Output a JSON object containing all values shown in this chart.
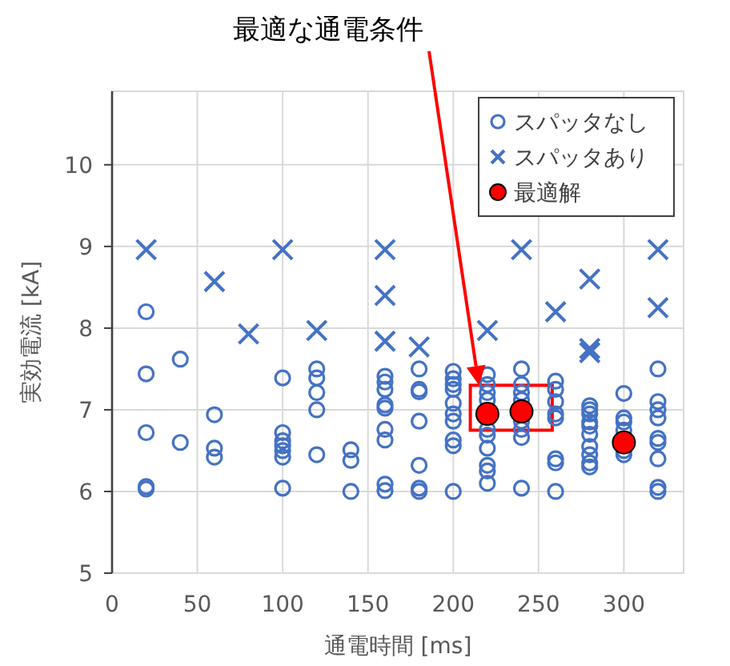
{
  "chart_data": {
    "type": "scatter",
    "xlabel": "通電時間 [ms]",
    "ylabel": "実効電流 [kA]",
    "xlim": [
      0,
      335
    ],
    "ylim": [
      5,
      10.9
    ],
    "xticks": [
      0,
      50,
      100,
      150,
      200,
      250,
      300
    ],
    "yticks": [
      5,
      6,
      7,
      8,
      9,
      10
    ],
    "grid": true,
    "legend": "top right",
    "annotations": [
      "最適な通電条件"
    ],
    "series": [
      {
        "name": "スパッタなし",
        "color": "#4472c4",
        "marker": "circle",
        "x": [
          20,
          20,
          20,
          20,
          20,
          40,
          40,
          60,
          60,
          60,
          100,
          100,
          100,
          100,
          100,
          100,
          100,
          120,
          120,
          120,
          120,
          120,
          140,
          140,
          140,
          160,
          160,
          160,
          160,
          160,
          160,
          160,
          160,
          160,
          180,
          180,
          180,
          180,
          180,
          180,
          180,
          200,
          200,
          200,
          200,
          200,
          200,
          200,
          200,
          200,
          200,
          220,
          220,
          220,
          220,
          220,
          220,
          220,
          220,
          220,
          220,
          240,
          240,
          240,
          240,
          240,
          240,
          240,
          240,
          260,
          260,
          260,
          260,
          260,
          260,
          260,
          260,
          280,
          280,
          280,
          280,
          280,
          280,
          280,
          280,
          280,
          280,
          300,
          300,
          300,
          300,
          300,
          300,
          320,
          320,
          320,
          320,
          320,
          320,
          320,
          320,
          320
        ],
        "values": [
          8.2,
          7.44,
          6.72,
          6.06,
          6.03,
          7.62,
          6.6,
          6.94,
          6.53,
          6.42,
          7.39,
          6.72,
          6.62,
          6.56,
          6.5,
          6.42,
          6.04,
          7.5,
          7.39,
          7.21,
          7.0,
          6.45,
          6.51,
          6.38,
          6.0,
          7.41,
          7.34,
          7.25,
          7.06,
          7.02,
          6.76,
          6.63,
          6.09,
          6.01,
          7.5,
          7.25,
          7.22,
          6.86,
          6.32,
          6.04,
          6.0,
          7.47,
          7.38,
          7.31,
          7.25,
          7.08,
          6.95,
          6.86,
          6.63,
          6.56,
          6.0,
          7.43,
          7.31,
          7.21,
          7.12,
          6.76,
          6.69,
          6.53,
          6.32,
          6.25,
          6.1,
          7.5,
          7.31,
          7.21,
          7.12,
          6.86,
          6.76,
          6.66,
          6.04,
          7.35,
          7.25,
          7.1,
          6.95,
          6.9,
          6.4,
          6.35,
          6.0,
          7.05,
          7.0,
          6.95,
          6.85,
          6.8,
          6.7,
          6.55,
          6.45,
          6.35,
          6.3,
          7.2,
          6.9,
          6.85,
          6.75,
          6.5,
          6.45,
          7.5,
          7.1,
          7.0,
          6.9,
          6.65,
          6.6,
          6.4,
          6.05,
          6.0
        ]
      },
      {
        "name": "スパッタあり",
        "color": "#4472c4",
        "marker": "cross",
        "x": [
          20,
          60,
          80,
          100,
          120,
          160,
          160,
          160,
          180,
          220,
          240,
          260,
          280,
          280,
          280,
          320,
          320
        ],
        "values": [
          8.96,
          8.57,
          7.93,
          8.96,
          7.97,
          8.96,
          8.4,
          7.84,
          7.77,
          7.97,
          8.96,
          8.2,
          8.6,
          7.75,
          7.7,
          8.96,
          8.25
        ]
      },
      {
        "name": "最適解",
        "color": "#ff0000",
        "marker": "circle",
        "x": [
          220,
          240,
          300
        ],
        "values": [
          6.95,
          6.98,
          6.6
        ]
      }
    ]
  }
}
